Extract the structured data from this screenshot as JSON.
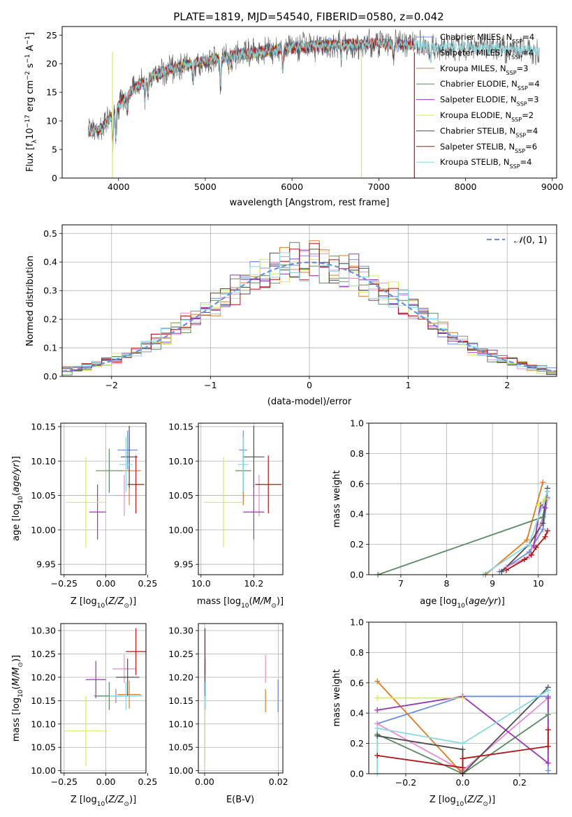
{
  "figure_title": "PLATE=1819, MJD=54540, FIBERID=0580, z=0.042",
  "colors": {
    "chabrier_miles": "#6b8ee0",
    "salpeter_miles": "#e88ad3",
    "kroupa_miles": "#e07b23",
    "chabrier_elodie": "#5a8a62",
    "salpeter_elodie": "#9b35b5",
    "kroupa_elodie": "#d6ec5c",
    "chabrier_stelib": "#4d4d4d",
    "salpeter_stelib": "#b01414",
    "kroupa_stelib": "#86d9e0"
  },
  "legend": [
    {
      "key": "chabrier_miles",
      "base": "Chabrier MILES, N",
      "sub": "SSP",
      "n": "=4"
    },
    {
      "key": "salpeter_miles",
      "base": "Salpeter MILES, N",
      "sub": "SSP",
      "n": "=4"
    },
    {
      "key": "kroupa_miles",
      "base": "Kroupa MILES, N",
      "sub": "SSP",
      "n": "=3"
    },
    {
      "key": "chabrier_elodie",
      "base": "Chabrier ELODIE, N",
      "sub": "SSP",
      "n": "=4"
    },
    {
      "key": "salpeter_elodie",
      "base": "Salpeter ELODIE, N",
      "sub": "SSP",
      "n": "=3"
    },
    {
      "key": "kroupa_elodie",
      "base": "Kroupa ELODIE, N",
      "sub": "SSP",
      "n": "=2"
    },
    {
      "key": "chabrier_stelib",
      "base": "Chabrier STELIB, N",
      "sub": "SSP",
      "n": "=4"
    },
    {
      "key": "salpeter_stelib",
      "base": "Salpeter STELIB, N",
      "sub": "SSP",
      "n": "=6"
    },
    {
      "key": "kroupa_stelib",
      "base": "Kroupa STELIB, N",
      "sub": "SSP",
      "n": "=4"
    }
  ],
  "chart_data": [
    {
      "type": "line",
      "panel": "spectrum",
      "xlabel": "wavelength [Angstrom, rest frame]",
      "ylabel": "Flux [f_λ 10^-17 erg cm^-2 s^-1 A^-1]",
      "xlim": [
        3350,
        9050
      ],
      "ylim": [
        0,
        26.5
      ],
      "xticks": [
        4000,
        5000,
        6000,
        7000,
        8000,
        9000
      ],
      "yticks": [
        0,
        5,
        10,
        15,
        20,
        25
      ],
      "continuum": {
        "wavelength": [
          3650,
          3800,
          3950,
          4100,
          4300,
          4500,
          4700,
          5000,
          5300,
          5600,
          6000,
          6500,
          7000,
          7400,
          7800,
          8200,
          8600,
          8850
        ],
        "flux": [
          8.0,
          8.5,
          11.5,
          14.5,
          17.0,
          18.5,
          19.5,
          20.5,
          21.3,
          22.0,
          22.8,
          23.3,
          23.5,
          23.3,
          23.0,
          22.8,
          22.5,
          22.3
        ]
      },
      "absorption_features": [
        {
          "wavelength": 3934,
          "depth": 6
        },
        {
          "wavelength": 3968,
          "depth": 5
        },
        {
          "wavelength": 4101,
          "depth": 3
        },
        {
          "wavelength": 4304,
          "depth": 4
        },
        {
          "wavelength": 4340,
          "depth": 3
        },
        {
          "wavelength": 4861,
          "depth": 3
        },
        {
          "wavelength": 5175,
          "depth": 5
        },
        {
          "wavelength": 5270,
          "depth": 2
        },
        {
          "wavelength": 5893,
          "depth": 4
        },
        {
          "wavelength": 6563,
          "depth": 2
        },
        {
          "wavelength": 7170,
          "depth": 2
        },
        {
          "wavelength": 7600,
          "depth": 3
        }
      ],
      "spikes": [
        {
          "series": "kroupa_elodie",
          "wavelength": 3930
        },
        {
          "series": "kroupa_elodie",
          "wavelength": 6800
        },
        {
          "series": "salpeter_stelib",
          "wavelength": 7410
        }
      ],
      "series_ranges": {
        "chabrier_miles": [
          3650,
          7400
        ],
        "salpeter_miles": [
          3650,
          7400
        ],
        "kroupa_miles": [
          3650,
          7400
        ],
        "chabrier_elodie": [
          3650,
          6800
        ],
        "salpeter_elodie": [
          3650,
          6800
        ],
        "kroupa_elodie": [
          3650,
          6800
        ],
        "chabrier_stelib": [
          3650,
          8850
        ],
        "salpeter_stelib": [
          3650,
          7410
        ],
        "kroupa_stelib": [
          3650,
          8850
        ]
      }
    },
    {
      "type": "histogram",
      "panel": "residuals",
      "xlabel": "(data-model)/error",
      "ylabel": "Normed distribution",
      "xlim": [
        -2.5,
        2.5
      ],
      "ylim": [
        0,
        0.53
      ],
      "xticks": [
        -2,
        -1,
        0,
        1,
        2
      ],
      "yticks": [
        0.0,
        0.1,
        0.2,
        0.3,
        0.4,
        0.5
      ],
      "bin_width": 0.1,
      "reference": {
        "label": "N(0,1)",
        "mu": 0,
        "sigma": 1,
        "color": "#6b8ee0"
      },
      "series_order": [
        "chabrier_miles",
        "salpeter_miles",
        "kroupa_miles",
        "chabrier_elodie",
        "salpeter_elodie",
        "kroupa_elodie",
        "chabrier_stelib",
        "salpeter_stelib",
        "kroupa_stelib"
      ]
    },
    {
      "type": "scatter",
      "panel": "age_vs_Z",
      "xlabel": "Z [log10(Z/Zsun)]",
      "ylabel": "age [log10(age/yr)]",
      "xlim": [
        -0.27,
        0.24
      ],
      "ylim": [
        9.935,
        10.155
      ],
      "xticks": [
        -0.25,
        0.0,
        0.25
      ],
      "xtick_labels": [
        "−0.25",
        "0.00",
        "0.25"
      ],
      "yticks": [
        9.95,
        10.0,
        10.05,
        10.1,
        10.15
      ],
      "ytick_labels": [
        "9.95",
        "10.00",
        "10.05",
        "10.10",
        "10.15"
      ],
      "points": [
        {
          "series": "chabrier_miles",
          "x": 0.13,
          "xerr": 0.06,
          "y": 10.116,
          "yerr": 0.028
        },
        {
          "series": "salpeter_miles",
          "x": 0.11,
          "xerr": 0.06,
          "y": 10.05,
          "yerr": 0.03
        },
        {
          "series": "kroupa_miles",
          "x": 0.14,
          "xerr": 0.07,
          "y": 10.086,
          "yerr": 0.05
        },
        {
          "series": "chabrier_elodie",
          "x": 0.02,
          "xerr": 0.08,
          "y": 10.086,
          "yerr": 0.032
        },
        {
          "series": "salpeter_elodie",
          "x": -0.05,
          "xerr": 0.05,
          "y": 10.026,
          "yerr": 0.04
        },
        {
          "series": "kroupa_elodie",
          "x": -0.12,
          "xerr": 0.12,
          "y": 10.04,
          "yerr": 0.066
        },
        {
          "series": "chabrier_stelib",
          "x": 0.14,
          "xerr": 0.05,
          "y": 10.106,
          "yerr": 0.045
        },
        {
          "series": "salpeter_stelib",
          "x": 0.18,
          "xerr": 0.05,
          "y": 10.066,
          "yerr": 0.042
        },
        {
          "series": "kroupa_stelib",
          "x": 0.12,
          "xerr": 0.04,
          "y": 10.095,
          "yerr": 0.04
        }
      ]
    },
    {
      "type": "scatter",
      "panel": "age_vs_mass",
      "xlabel": "mass [log10(M/Msun)]",
      "ylabel": "",
      "xlim": [
        9.99,
        10.31
      ],
      "ylim": [
        9.935,
        10.155
      ],
      "xticks": [
        10.0,
        10.2
      ],
      "xtick_labels": [
        "10.0",
        "10.2"
      ],
      "yticks": [
        9.95,
        10.0,
        10.05,
        10.1,
        10.15
      ],
      "ytick_labels": [
        "9.95",
        "10.00",
        "10.05",
        "10.10",
        "10.15"
      ],
      "points": [
        {
          "series": "chabrier_miles",
          "x": 10.16,
          "xerr": 0.015,
          "y": 10.116,
          "yerr": 0.028
        },
        {
          "series": "salpeter_miles",
          "x": 10.22,
          "xerr": 0.03,
          "y": 10.05,
          "yerr": 0.03
        },
        {
          "series": "kroupa_miles",
          "x": 10.16,
          "xerr": 0.03,
          "y": 10.086,
          "yerr": 0.05
        },
        {
          "series": "chabrier_elodie",
          "x": 10.16,
          "xerr": 0.03,
          "y": 10.086,
          "yerr": 0.032
        },
        {
          "series": "salpeter_elodie",
          "x": 10.2,
          "xerr": 0.04,
          "y": 10.026,
          "yerr": 0.04
        },
        {
          "series": "kroupa_elodie",
          "x": 10.085,
          "xerr": 0.075,
          "y": 10.04,
          "yerr": 0.066
        },
        {
          "series": "chabrier_stelib",
          "x": 10.2,
          "xerr": 0.04,
          "y": 10.106,
          "yerr": 0.045
        },
        {
          "series": "salpeter_stelib",
          "x": 10.255,
          "xerr": 0.05,
          "y": 10.066,
          "yerr": 0.042
        },
        {
          "series": "kroupa_stelib",
          "x": 10.16,
          "xerr": 0.02,
          "y": 10.095,
          "yerr": 0.04
        }
      ]
    },
    {
      "type": "line",
      "panel": "weight_vs_age",
      "xlabel": "age [log10(age/yr)]",
      "ylabel": "mass weight",
      "xlim": [
        6.3,
        10.4
      ],
      "ylim": [
        0,
        1.0
      ],
      "xticks": [
        7,
        8,
        9,
        10
      ],
      "yticks": [
        0.0,
        0.2,
        0.4,
        0.6,
        0.8,
        1.0
      ],
      "series": [
        {
          "name": "chabrier_miles",
          "x": [
            9.15,
            9.8,
            10.1,
            10.2
          ],
          "y": [
            0.02,
            0.15,
            0.3,
            0.51
          ]
        },
        {
          "name": "salpeter_miles",
          "x": [
            9.3,
            9.8,
            10.05,
            10.2
          ],
          "y": [
            0.05,
            0.12,
            0.33,
            0.5
          ]
        },
        {
          "name": "kroupa_miles",
          "x": [
            8.85,
            9.75,
            10.1
          ],
          "y": [
            0.0,
            0.23,
            0.61
          ]
        },
        {
          "name": "chabrier_elodie",
          "x": [
            6.5,
            10.1,
            10.2
          ],
          "y": [
            0.0,
            0.38,
            0.55
          ]
        },
        {
          "name": "salpeter_elodie",
          "x": [
            9.9,
            10.05,
            10.15
          ],
          "y": [
            0.19,
            0.46,
            0.44
          ]
        },
        {
          "name": "kroupa_elodie",
          "x": [
            10.0,
            10.15
          ],
          "y": [
            0.46,
            0.5
          ]
        },
        {
          "name": "chabrier_stelib",
          "x": [
            9.2,
            9.8,
            10.1,
            10.2
          ],
          "y": [
            0.02,
            0.2,
            0.34,
            0.57
          ]
        },
        {
          "name": "salpeter_stelib",
          "x": [
            9.3,
            9.7,
            9.85,
            9.95,
            10.15,
            10.2
          ],
          "y": [
            0.03,
            0.1,
            0.13,
            0.18,
            0.25,
            0.29
          ]
        },
        {
          "name": "kroupa_stelib",
          "x": [
            8.8,
            9.8,
            10.2
          ],
          "y": [
            0.0,
            0.2,
            0.55
          ]
        }
      ]
    },
    {
      "type": "scatter",
      "panel": "mass_vs_Z",
      "xlabel": "Z [log10(Z/Zsun)]",
      "ylabel": "mass [log10(M/Msun)]",
      "xlim": [
        -0.27,
        0.24
      ],
      "ylim": [
        9.995,
        10.315
      ],
      "xticks": [
        -0.25,
        0.0,
        0.25
      ],
      "xtick_labels": [
        "−0.25",
        "0.00",
        "0.25"
      ],
      "yticks": [
        10.0,
        10.05,
        10.1,
        10.15,
        10.2,
        10.25,
        10.3
      ],
      "ytick_labels": [
        "10.00",
        "10.05",
        "10.10",
        "10.15",
        "10.20",
        "10.25",
        "10.30"
      ],
      "points": [
        {
          "series": "chabrier_miles",
          "x": 0.06,
          "xerr": 0.12,
          "y": 10.16,
          "yerr": 0.015
        },
        {
          "series": "salpeter_miles",
          "x": 0.11,
          "xerr": 0.07,
          "y": 10.218,
          "yerr": 0.03
        },
        {
          "series": "kroupa_miles",
          "x": 0.14,
          "xerr": 0.07,
          "y": 10.163,
          "yerr": 0.03
        },
        {
          "series": "chabrier_elodie",
          "x": 0.02,
          "xerr": 0.09,
          "y": 10.16,
          "yerr": 0.03
        },
        {
          "series": "salpeter_elodie",
          "x": -0.06,
          "xerr": 0.06,
          "y": 10.195,
          "yerr": 0.04
        },
        {
          "series": "kroupa_elodie",
          "x": -0.12,
          "xerr": 0.13,
          "y": 10.085,
          "yerr": 0.075
        },
        {
          "series": "chabrier_stelib",
          "x": 0.13,
          "xerr": 0.07,
          "y": 10.2,
          "yerr": 0.04
        },
        {
          "series": "salpeter_stelib",
          "x": 0.18,
          "xerr": 0.06,
          "y": 10.255,
          "yerr": 0.05
        },
        {
          "series": "kroupa_stelib",
          "x": 0.12,
          "xerr": 0.1,
          "y": 10.16,
          "yerr": 0.03
        }
      ]
    },
    {
      "type": "scatter",
      "panel": "mass_vs_EBV",
      "xlabel": "E(B-V)",
      "ylabel": "",
      "xlim": [
        -0.0017,
        0.0212
      ],
      "ylim": [
        9.995,
        10.315
      ],
      "xticks": [
        0.0,
        0.02
      ],
      "xtick_labels": [
        "0.00",
        "0.02"
      ],
      "yticks": [
        10.0,
        10.05,
        10.1,
        10.15,
        10.2,
        10.25,
        10.3
      ],
      "ytick_labels": [
        "10.00",
        "10.05",
        "10.10",
        "10.15",
        "10.20",
        "10.25",
        "10.30"
      ],
      "points": [
        {
          "series": "chabrier_miles",
          "x": 0.0199,
          "xerr": 0,
          "y": 10.16,
          "yerr": 0.035
        },
        {
          "series": "salpeter_miles",
          "x": 0.0165,
          "xerr": 0,
          "y": 10.218,
          "yerr": 0.03
        },
        {
          "series": "kroupa_miles",
          "x": 0.0165,
          "xerr": 0,
          "y": 10.15,
          "yerr": 0.025
        },
        {
          "series": "chabrier_elodie",
          "x": 0.0001,
          "xerr": 0,
          "y": 10.16,
          "yerr": 0.03
        },
        {
          "series": "salpeter_elodie",
          "x": 0.0001,
          "xerr": 0,
          "y": 10.195,
          "yerr": 0.04
        },
        {
          "series": "kroupa_elodie",
          "x": 0.0001,
          "xerr": 0,
          "y": 10.085,
          "yerr": 0.075
        },
        {
          "series": "chabrier_stelib",
          "x": 0.0001,
          "xerr": 0,
          "y": 10.2,
          "yerr": 0.04
        },
        {
          "series": "salpeter_stelib",
          "x": 0.0001,
          "xerr": 0,
          "y": 10.255,
          "yerr": 0.05
        },
        {
          "series": "kroupa_stelib",
          "x": 0.0002,
          "xerr": 0,
          "y": 10.16,
          "yerr": 0.03
        }
      ]
    },
    {
      "type": "line",
      "panel": "weight_vs_Z",
      "xlabel": "Z [log10(Z/Zsun)]",
      "ylabel": "mass weight",
      "xlim": [
        -0.33,
        0.33
      ],
      "ylim": [
        0,
        1.0
      ],
      "xticks": [
        -0.2,
        0.0,
        0.2
      ],
      "xtick_labels": [
        "−0.2",
        "0.0",
        "0.2"
      ],
      "yticks": [
        0.0,
        0.2,
        0.4,
        0.6,
        0.8,
        1.0
      ],
      "series": [
        {
          "name": "chabrier_miles",
          "x": [
            -0.3,
            0.0,
            0.3,
            0.3
          ],
          "y": [
            0.33,
            0.51,
            0.51,
            0.02
          ]
        },
        {
          "name": "salpeter_miles",
          "x": [
            -0.3,
            0.0,
            0.3
          ],
          "y": [
            0.33,
            0.02,
            0.5
          ]
        },
        {
          "name": "kroupa_miles",
          "x": [
            -0.3,
            0.0,
            0.0
          ],
          "y": [
            0.61,
            0.0,
            0.02
          ]
        },
        {
          "name": "chabrier_elodie",
          "x": [
            -0.3,
            0.0,
            0.3
          ],
          "y": [
            0.26,
            0.0,
            0.39
          ]
        },
        {
          "name": "salpeter_elodie",
          "x": [
            -0.3,
            0.0,
            0.3,
            0.3
          ],
          "y": [
            0.42,
            0.51,
            0.07,
            0.5
          ]
        },
        {
          "name": "kroupa_elodie",
          "x": [
            -0.3,
            0.0
          ],
          "y": [
            0.5,
            0.5
          ]
        },
        {
          "name": "chabrier_stelib",
          "x": [
            -0.3,
            0.0,
            0.0,
            0.3
          ],
          "y": [
            0.25,
            0.16,
            0.0,
            0.57
          ]
        },
        {
          "name": "salpeter_stelib",
          "x": [
            -0.3,
            0.0,
            0.0,
            0.3,
            0.3
          ],
          "y": [
            0.12,
            0.04,
            0.1,
            0.18,
            0.29
          ]
        },
        {
          "name": "kroupa_stelib",
          "x": [
            -0.3,
            -0.3,
            0.0,
            0.3
          ],
          "y": [
            0.0,
            0.3,
            0.2,
            0.55
          ]
        }
      ]
    }
  ]
}
